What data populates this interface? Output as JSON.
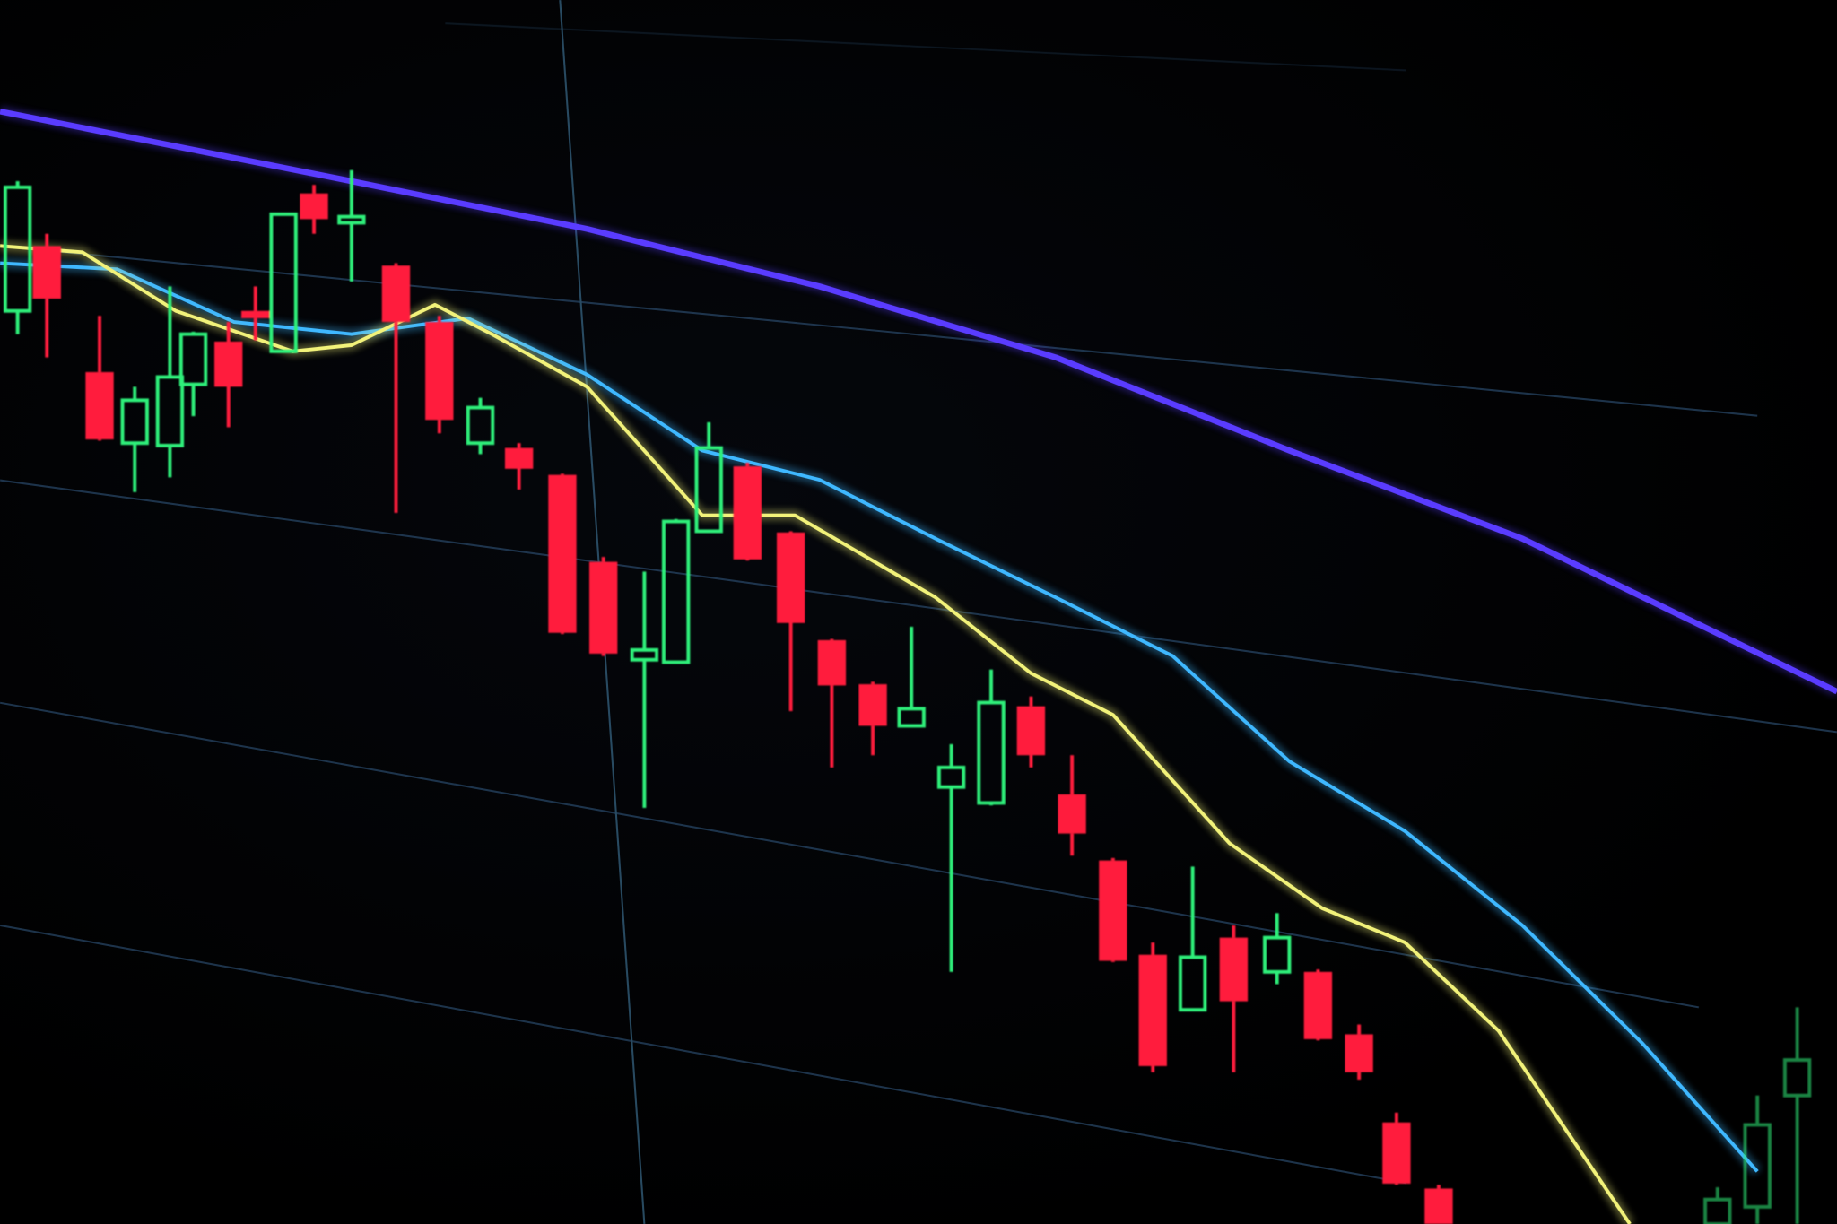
{
  "chart_data": {
    "type": "candlestick",
    "title": "",
    "xlabel": "",
    "ylabel": "",
    "ylim": [
      0,
      100
    ],
    "grid": true,
    "legend": "none",
    "colors": {
      "up": "#2ef07a",
      "down": "#ff1e3c",
      "ma_slow": "#5a3cff",
      "ma_mid": "#3fb8ff",
      "ma_fast": "#f2f27a",
      "grid": "#2a4a6a"
    },
    "candles": [
      {
        "o": 74.6,
        "h": 85.2,
        "l": 72.7,
        "c": 84.7
      },
      {
        "o": 79.9,
        "h": 80.9,
        "l": 70.8,
        "c": 75.6
      },
      {
        "o": 69.6,
        "h": 74.2,
        "l": 64.0,
        "c": 64.1
      },
      {
        "o": 63.8,
        "h": 68.4,
        "l": 59.8,
        "c": 67.3
      },
      {
        "o": 63.6,
        "h": 76.6,
        "l": 61.0,
        "c": 69.2
      },
      {
        "o": 68.6,
        "h": 72.9,
        "l": 66.0,
        "c": 72.7
      },
      {
        "o": 72.1,
        "h": 73.7,
        "l": 65.1,
        "c": 68.4
      },
      {
        "o": 74.6,
        "h": 76.6,
        "l": 72.2,
        "c": 74.0
      },
      {
        "o": 71.3,
        "h": 82.6,
        "l": 71.2,
        "c": 82.5
      },
      {
        "o": 84.2,
        "h": 84.9,
        "l": 80.9,
        "c": 82.1
      },
      {
        "o": 81.8,
        "h": 86.1,
        "l": 77.0,
        "c": 82.3
      },
      {
        "o": 78.3,
        "h": 78.5,
        "l": 58.1,
        "c": 73.7
      },
      {
        "o": 73.7,
        "h": 74.2,
        "l": 64.6,
        "c": 65.7
      },
      {
        "o": 63.8,
        "h": 67.5,
        "l": 62.9,
        "c": 66.7
      },
      {
        "o": 63.4,
        "h": 63.8,
        "l": 60.0,
        "c": 61.7
      },
      {
        "o": 61.2,
        "h": 61.3,
        "l": 48.2,
        "c": 48.3
      },
      {
        "o": 54.1,
        "h": 54.5,
        "l": 46.4,
        "c": 46.6
      },
      {
        "o": 46.1,
        "h": 53.3,
        "l": 34.0,
        "c": 46.9
      },
      {
        "o": 45.9,
        "h": 57.6,
        "l": 45.8,
        "c": 57.4
      },
      {
        "o": 56.6,
        "h": 65.5,
        "l": 56.5,
        "c": 63.4
      },
      {
        "o": 61.9,
        "h": 62.2,
        "l": 54.2,
        "c": 54.3
      },
      {
        "o": 56.5,
        "h": 56.6,
        "l": 41.9,
        "c": 49.1
      },
      {
        "o": 47.7,
        "h": 47.8,
        "l": 37.3,
        "c": 44.0
      },
      {
        "o": 44.1,
        "h": 44.3,
        "l": 38.3,
        "c": 40.7
      },
      {
        "o": 40.7,
        "h": 48.8,
        "l": 40.6,
        "c": 42.1
      },
      {
        "o": 35.7,
        "h": 39.2,
        "l": 20.6,
        "c": 37.3
      },
      {
        "o": 34.4,
        "h": 45.3,
        "l": 34.2,
        "c": 42.6
      },
      {
        "o": 42.3,
        "h": 43.1,
        "l": 37.3,
        "c": 38.3
      },
      {
        "o": 35.1,
        "h": 38.3,
        "l": 30.1,
        "c": 31.9
      },
      {
        "o": 29.7,
        "h": 29.9,
        "l": 21.4,
        "c": 21.5
      },
      {
        "o": 22.0,
        "h": 23.0,
        "l": 12.4,
        "c": 12.9
      },
      {
        "o": 17.5,
        "h": 29.2,
        "l": 17.4,
        "c": 21.8
      },
      {
        "o": 23.4,
        "h": 24.4,
        "l": 12.4,
        "c": 18.2
      },
      {
        "o": 20.6,
        "h": 25.4,
        "l": 19.6,
        "c": 23.4
      },
      {
        "o": 20.6,
        "h": 20.8,
        "l": 15.0,
        "c": 15.1
      },
      {
        "o": 15.5,
        "h": 16.3,
        "l": 11.8,
        "c": 12.4
      },
      {
        "o": 8.3,
        "h": 9.1,
        "l": 3.2,
        "c": 3.3
      },
      {
        "o": 2.9,
        "h": 3.2,
        "l": 0,
        "c": 0
      },
      null,
      null,
      null,
      null,
      null,
      null,
      {
        "o": 0,
        "h": 3.0,
        "l": 0,
        "c": 2.0
      },
      {
        "o": 1.4,
        "h": 10.5,
        "l": 0,
        "c": 8.1
      },
      {
        "o": 10.5,
        "h": 17.7,
        "l": 0,
        "c": 13.4
      }
    ],
    "moving_averages": [
      {
        "color": "#5a3cff",
        "points": [
          [
            -0.6,
            90.9
          ],
          [
            10,
            85.2
          ],
          [
            15.6,
            81.3
          ],
          [
            21.7,
            76.6
          ],
          [
            27.6,
            70.8
          ],
          [
            33.3,
            63.2
          ],
          [
            39.1,
            56.0
          ],
          [
            47,
            43.5
          ]
        ]
      },
      {
        "color": "#3fb8ff",
        "points": [
          [
            -0.6,
            78.5
          ],
          [
            2.5,
            78.0
          ],
          [
            6.2,
            73.7
          ],
          [
            10,
            72.7
          ],
          [
            12.7,
            74.0
          ],
          [
            15.6,
            69.4
          ],
          [
            18.8,
            63.2
          ],
          [
            21.7,
            60.8
          ],
          [
            24.6,
            56.0
          ],
          [
            27.6,
            51.2
          ],
          [
            30.5,
            46.4
          ],
          [
            33.3,
            37.8
          ],
          [
            36.2,
            32.1
          ],
          [
            39.1,
            24.4
          ],
          [
            42.1,
            14.8
          ],
          [
            45,
            4.3
          ]
        ]
      },
      {
        "color": "#f2f27a",
        "points": [
          [
            -0.6,
            79.9
          ],
          [
            1.67,
            79.4
          ],
          [
            4.25,
            74.6
          ],
          [
            8.3,
            71.3
          ],
          [
            10,
            71.8
          ],
          [
            11.9,
            75.1
          ],
          [
            13.3,
            72.7
          ],
          [
            15.6,
            68.4
          ],
          [
            18.8,
            57.9
          ],
          [
            21.1,
            57.9
          ],
          [
            24.6,
            51.2
          ],
          [
            27,
            45.0
          ],
          [
            29,
            41.6
          ],
          [
            31.9,
            31.1
          ],
          [
            34.1,
            25.8
          ],
          [
            36.2,
            23.0
          ],
          [
            38.5,
            15.8
          ],
          [
            41.8,
            0
          ]
        ]
      }
    ]
  }
}
